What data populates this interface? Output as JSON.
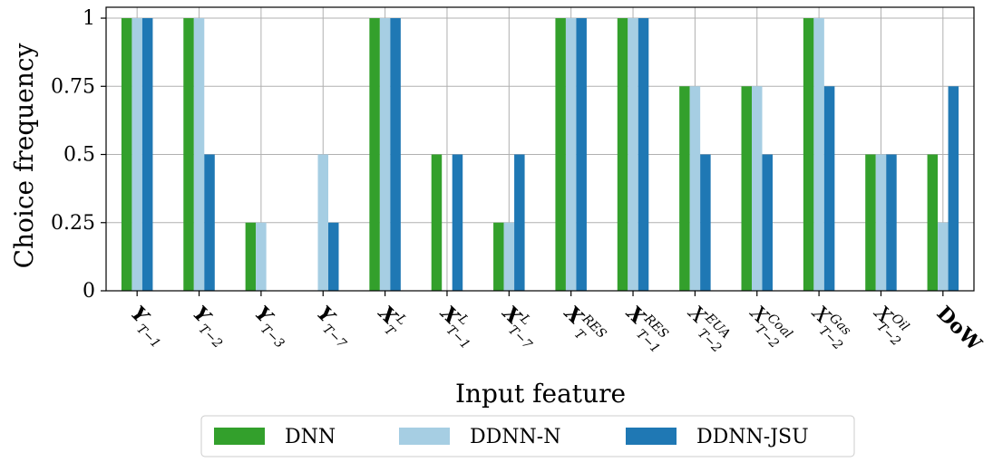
{
  "chart_data": {
    "type": "bar",
    "xlabel": "Input feature",
    "ylabel": "Choice frequency",
    "ylim": [
      0,
      1.04
    ],
    "yticks": [
      0,
      0.25,
      0.5,
      0.75,
      1
    ],
    "ytick_labels": [
      "0",
      "0.25",
      "0.5",
      "0.75",
      "1"
    ],
    "grid": true,
    "legend_position": "bottom-center",
    "categories": [
      {
        "base": "Y",
        "sup": "",
        "sub": "T−1",
        "bold": true,
        "italic": true
      },
      {
        "base": "Y",
        "sup": "",
        "sub": "T−2",
        "bold": true,
        "italic": true
      },
      {
        "base": "Y",
        "sup": "",
        "sub": "T−3",
        "bold": true,
        "italic": true
      },
      {
        "base": "Y",
        "sup": "",
        "sub": "T−7",
        "bold": true,
        "italic": true
      },
      {
        "base": "X",
        "sup": "L",
        "sub": "T",
        "bold": true,
        "italic": true
      },
      {
        "base": "X",
        "sup": "L",
        "sub": "T−1",
        "bold": true,
        "italic": true
      },
      {
        "base": "X",
        "sup": "L",
        "sub": "T−7",
        "bold": true,
        "italic": true
      },
      {
        "base": "X",
        "sup": "RES",
        "sub": "T",
        "bold": true,
        "italic": true
      },
      {
        "base": "X",
        "sup": "RES",
        "sub": "T−1",
        "bold": true,
        "italic": true
      },
      {
        "base": "X",
        "sup": "EUA",
        "sub": "T−2",
        "bold": false,
        "italic": true
      },
      {
        "base": "X",
        "sup": "Coal",
        "sub": "T−2",
        "bold": false,
        "italic": true
      },
      {
        "base": "X",
        "sup": "Gas",
        "sub": "T−2",
        "bold": false,
        "italic": true
      },
      {
        "base": "X",
        "sup": "Oil",
        "sub": "T−2",
        "bold": false,
        "italic": true
      },
      {
        "base": "DoW",
        "sup": "",
        "sub": "",
        "bold": true,
        "italic": false
      }
    ],
    "series": [
      {
        "name": "DNN",
        "color": "#33a02c",
        "values": [
          1,
          1,
          0.25,
          0,
          1,
          0.5,
          0.25,
          1,
          1,
          0.75,
          0.75,
          1,
          0.5,
          0.5
        ]
      },
      {
        "name": "DDNN-N",
        "color": "#a6cee3",
        "values": [
          1,
          1,
          0.25,
          0.5,
          1,
          0,
          0.25,
          1,
          1,
          0.75,
          0.75,
          1,
          0.5,
          0.25
        ]
      },
      {
        "name": "DDNN-JSU",
        "color": "#1f78b4",
        "values": [
          1,
          0.5,
          0,
          0.25,
          1,
          0.5,
          0.5,
          1,
          1,
          0.5,
          0.5,
          0.75,
          0.5,
          0.75
        ]
      }
    ]
  }
}
